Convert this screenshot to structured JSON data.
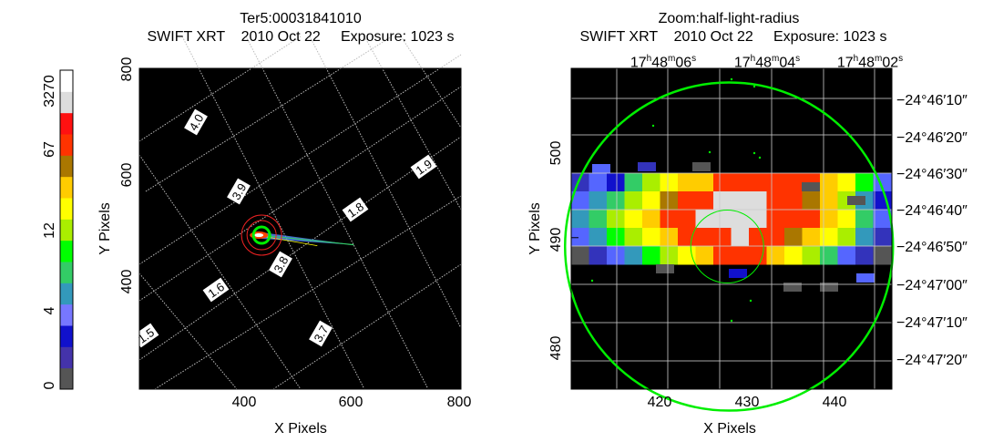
{
  "left_panel": {
    "title_line1": "Ter5:00031841010",
    "title_line2": "SWIFT XRT    2010 Oct 22     Exposure: 1023 s",
    "xlabel": "X Pixels",
    "ylabel": "Y Pixels",
    "xticks": [
      "400",
      "600",
      "800"
    ],
    "yticks": [
      "400",
      "600",
      "800"
    ],
    "contour_labels": [
      "4.0",
      "3.9",
      "3.8",
      "3.7",
      "1.9",
      "1.8",
      "1.6",
      "1.5"
    ]
  },
  "colorbar": {
    "ticks": [
      "0",
      "4",
      "12",
      "67",
      "3270"
    ],
    "colors": [
      "#555555",
      "#4433aa",
      "#1111cc",
      "#7777ff",
      "#3399bb",
      "#33cc66",
      "#00ff00",
      "#aaee00",
      "#ffff00",
      "#ffcc00",
      "#aa7700",
      "#ff3300",
      "#ff1111",
      "#dddddd",
      "#ffffff"
    ]
  },
  "right_panel": {
    "title_line1": "Zoom:half-light-radius",
    "title_line2": "SWIFT XRT    2010 Oct 22     Exposure: 1023 s",
    "xlabel": "X Pixels",
    "ylabel": "Y Pixels",
    "xticks": [
      "420",
      "430",
      "440"
    ],
    "yticks": [
      "480",
      "490",
      "500"
    ],
    "ra_ticks": [
      {
        "h": "17",
        "m": "48",
        "s": "06"
      },
      {
        "h": "17",
        "m": "48",
        "s": "04"
      },
      {
        "h": "17",
        "m": "48",
        "s": "02"
      }
    ],
    "dec_ticks": [
      {
        "d": "−24°",
        "m": "46",
        "s": "10"
      },
      {
        "d": "−24°",
        "m": "46",
        "s": "20"
      },
      {
        "d": "−24°",
        "m": "46",
        "s": "30"
      },
      {
        "d": "−24°",
        "m": "46",
        "s": "40"
      },
      {
        "d": "−24°",
        "m": "46",
        "s": "50"
      },
      {
        "d": "−24°",
        "m": "47",
        "s": "00"
      },
      {
        "d": "−24°",
        "m": "47",
        "s": "10"
      },
      {
        "d": "−24°",
        "m": "47",
        "s": "20"
      }
    ]
  },
  "chart_data": [
    {
      "type": "heatmap",
      "title": "Ter5:00031841010",
      "subtitle": "SWIFT XRT    2010 Oct 22     Exposure: 1023 s",
      "xlabel": "X Pixels",
      "ylabel": "Y Pixels",
      "xlim": [
        200,
        800
      ],
      "ylim": [
        200,
        800
      ],
      "source_center": [
        428,
        488
      ],
      "streak_end": [
        600,
        470
      ],
      "grid": true
    },
    {
      "type": "heatmap",
      "title": "Zoom:half-light-radius",
      "subtitle": "SWIFT XRT    2010 Oct 22     Exposure: 1023 s",
      "xlabel": "X Pixels",
      "ylabel": "Y Pixels",
      "xlim": [
        410,
        447
      ],
      "ylim": [
        473,
        509
      ],
      "half_light_radius_center": [
        428,
        489
      ],
      "grid": true
    }
  ]
}
